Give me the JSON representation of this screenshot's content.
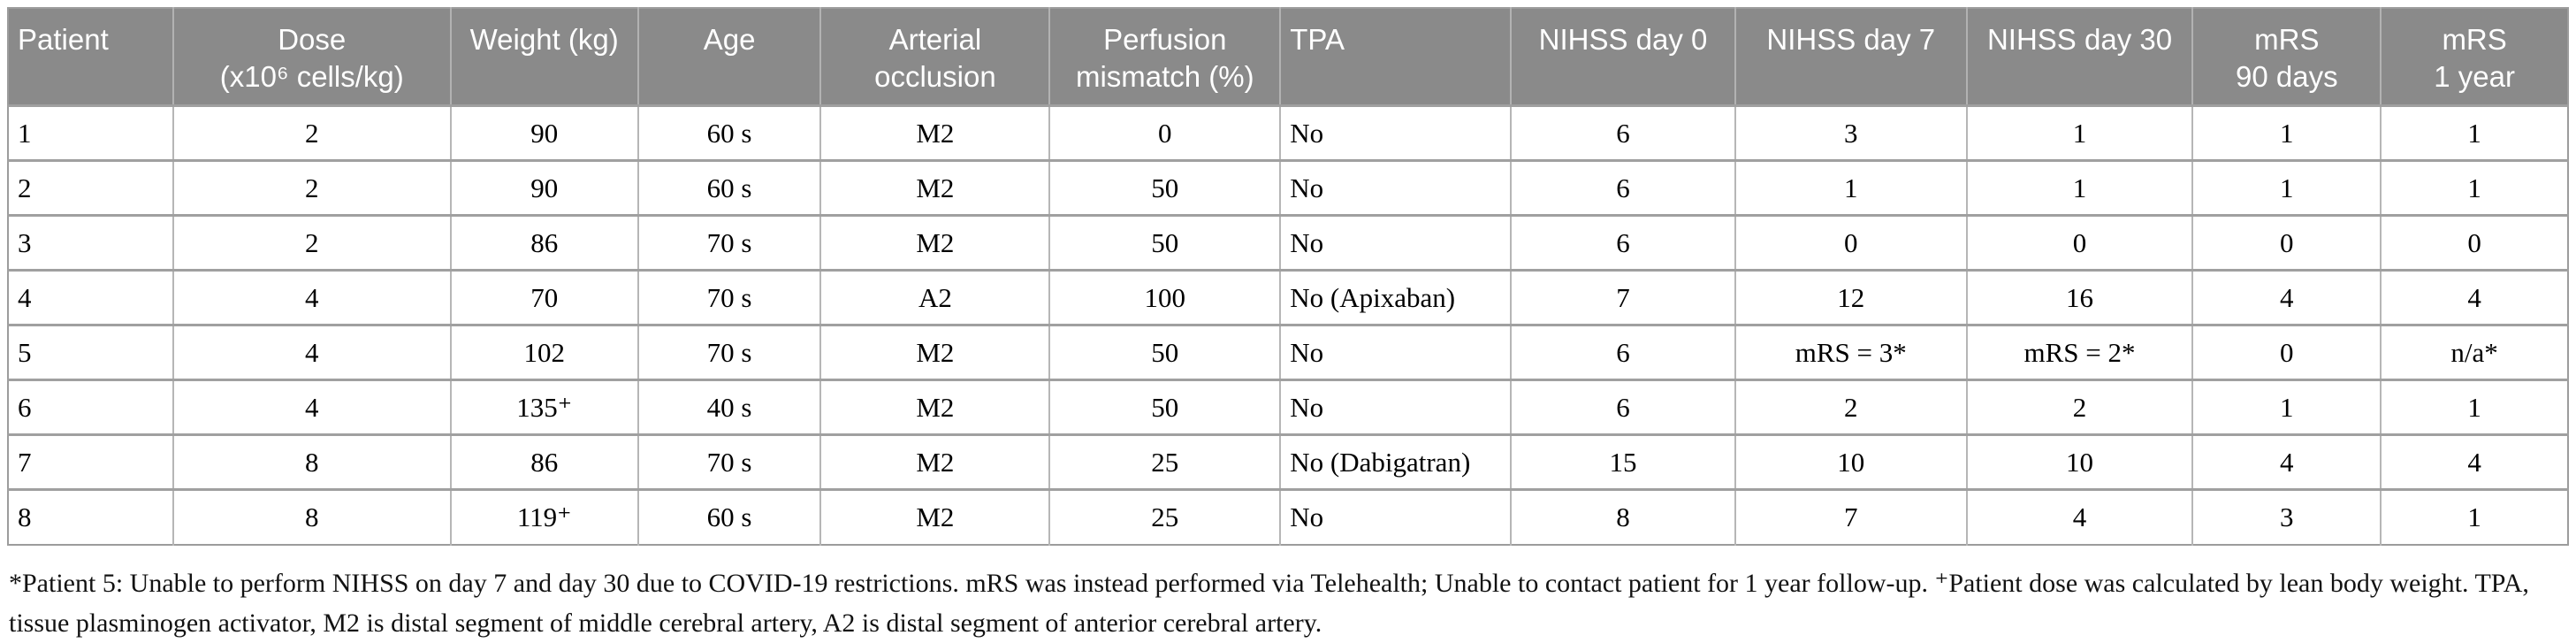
{
  "styles": {
    "header_bg": "#8a8a8a",
    "header_text": "#ffffff",
    "row_border": "#a0a0a0",
    "column_border": "#b6b6b6",
    "data_text": "#000000"
  },
  "table": {
    "columns": [
      {
        "id": "patient",
        "label": "Patient",
        "align": "left"
      },
      {
        "id": "dose",
        "label": "Dose\n(x10⁶ cells/kg)",
        "align": "center"
      },
      {
        "id": "weight",
        "label": "Weight (kg)",
        "align": "center"
      },
      {
        "id": "age",
        "label": "Age",
        "align": "center"
      },
      {
        "id": "arterial-occlusion",
        "label": "Arterial\nocclusion",
        "align": "center"
      },
      {
        "id": "perfusion-mismatch",
        "label": "Perfusion\nmismatch (%)",
        "align": "center"
      },
      {
        "id": "tpa",
        "label": "TPA",
        "align": "left"
      },
      {
        "id": "nihss-day-0",
        "label": "NIHSS day 0",
        "align": "center"
      },
      {
        "id": "nihss-day-7",
        "label": "NIHSS day 7",
        "align": "center"
      },
      {
        "id": "nihss-day-30",
        "label": "NIHSS day 30",
        "align": "center"
      },
      {
        "id": "mrs-90-days",
        "label": "mRS\n90 days",
        "align": "center"
      },
      {
        "id": "mrs-1-year",
        "label": "mRS\n1 year",
        "align": "center"
      }
    ],
    "rows": [
      [
        "1",
        "2",
        "90",
        "60 s",
        "M2",
        "0",
        "No",
        "6",
        "3",
        "1",
        "1",
        "1"
      ],
      [
        "2",
        "2",
        "90",
        "60 s",
        "M2",
        "50",
        "No",
        "6",
        "1",
        "1",
        "1",
        "1"
      ],
      [
        "3",
        "2",
        "86",
        "70 s",
        "M2",
        "50",
        "No",
        "6",
        "0",
        "0",
        "0",
        "0"
      ],
      [
        "4",
        "4",
        "70",
        "70 s",
        "A2",
        "100",
        "No (Apixaban)",
        "7",
        "12",
        "16",
        "4",
        "4"
      ],
      [
        "5",
        "4",
        "102",
        "70 s",
        "M2",
        "50",
        "No",
        "6",
        "mRS = 3*",
        "mRS = 2*",
        "0",
        "n/a*"
      ],
      [
        "6",
        "4",
        "135⁺",
        "40 s",
        "M2",
        "50",
        "No",
        "6",
        "2",
        "2",
        "1",
        "1"
      ],
      [
        "7",
        "8",
        "86",
        "70 s",
        "M2",
        "25",
        "No (Dabigatran)",
        "15",
        "10",
        "10",
        "4",
        "4"
      ],
      [
        "8",
        "8",
        "119⁺",
        "60 s",
        "M2",
        "25",
        "No",
        "8",
        "7",
        "4",
        "3",
        "1"
      ]
    ]
  },
  "footnote": "*Patient 5: Unable to perform NIHSS on day 7 and day 30 due to COVID-19 restrictions. mRS was instead performed via Telehealth; Unable to contact patient for 1 year follow-up. ⁺Patient dose was calculated by lean body weight. TPA, tissue plasminogen activator, M2 is distal segment of middle cerebral artery, A2 is distal segment of anterior cerebral artery."
}
